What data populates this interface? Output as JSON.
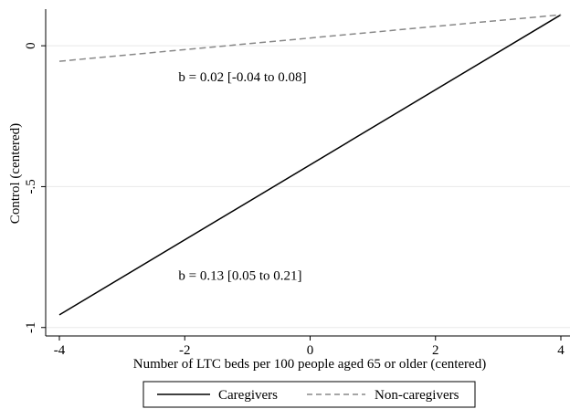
{
  "chart_data": {
    "type": "line",
    "title": "",
    "xlabel": "Number of LTC beds per 100 people aged 65 or older (centered)",
    "ylabel": "Control (centered)",
    "xlim": [
      -4,
      4
    ],
    "ylim": [
      -1.03,
      0.13
    ],
    "x_ticks": [
      -4,
      -2,
      0,
      2,
      4
    ],
    "x_tick_labels": [
      "-4",
      "-2",
      "0",
      "2",
      "4"
    ],
    "y_ticks": [
      0,
      -0.5,
      -1
    ],
    "y_tick_labels": [
      "0",
      "-.5",
      "-1"
    ],
    "grid": "horizontal",
    "legend_position": "bottom",
    "series": [
      {
        "name": "Caregivers",
        "x": [
          -4,
          4
        ],
        "y": [
          -0.955,
          0.11
        ],
        "style": "solid",
        "color": "#000000"
      },
      {
        "name": "Non-caregivers",
        "x": [
          -4,
          4
        ],
        "y": [
          -0.055,
          0.11
        ],
        "style": "dashed",
        "color": "#888888"
      }
    ],
    "annotations": [
      {
        "text": "b = 0.02 [-0.04 to 0.08]",
        "x": -2.1,
        "y": -0.11
      },
      {
        "text": "b = 0.13 [0.05 to 0.21]",
        "x": -2.1,
        "y": -0.815
      }
    ]
  }
}
